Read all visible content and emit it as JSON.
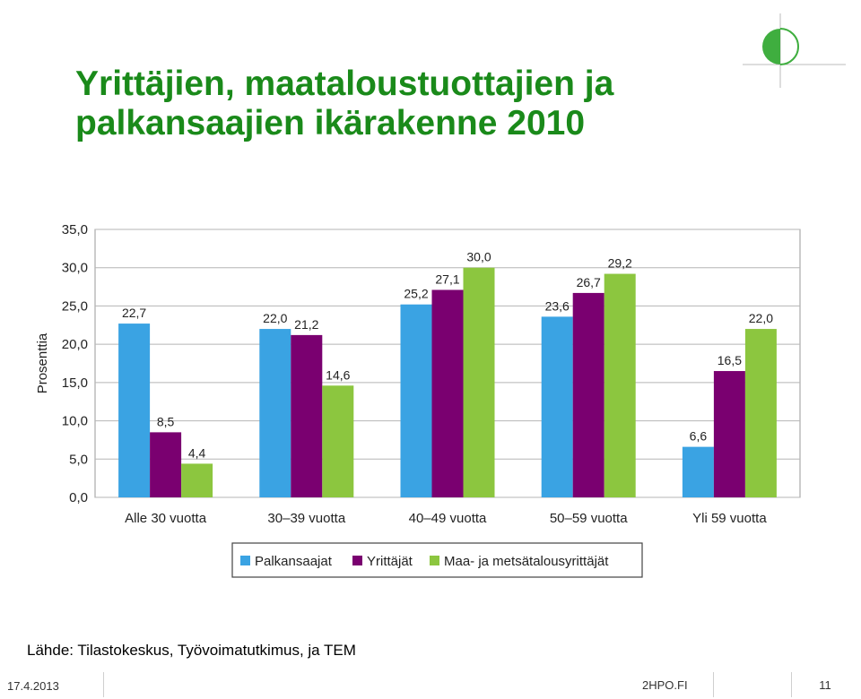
{
  "slide": {
    "title": "Yrittäjien, maataloustuottajien ja palkansaajien ikärakenne 2010",
    "source": "Lähde: Tilastokeskus, Työvoimatutkimus, ja TEM",
    "date": "17.4.2013",
    "site": "2HPO.FI",
    "page_number": "11"
  },
  "colors": {
    "title": "#1a8a1a",
    "series": [
      "#3aa3e3",
      "#7a0070",
      "#8cc63f"
    ]
  },
  "chart_data": {
    "type": "bar",
    "ylabel": "Prosenttia",
    "ylim": [
      0,
      35
    ],
    "yticks": [
      "0,0",
      "5,0",
      "10,0",
      "15,0",
      "20,0",
      "25,0",
      "30,0",
      "35,0"
    ],
    "grid": true,
    "legend_position": "bottom",
    "categories": [
      "Alle 30 vuotta",
      "30–39 vuotta",
      "40–49 vuotta",
      "50–59 vuotta",
      "Yli 59 vuotta"
    ],
    "series": [
      {
        "name": "Palkansaajat",
        "values": [
          22.7,
          22.0,
          25.2,
          23.6,
          6.6
        ],
        "labels": [
          "22,7",
          "22,0",
          "25,2",
          "23,6",
          "6,6"
        ]
      },
      {
        "name": "Yrittäjät",
        "values": [
          8.5,
          21.2,
          27.1,
          26.7,
          16.5
        ],
        "labels": [
          "8,5",
          "21,2",
          "27,1",
          "26,7",
          "16,5"
        ]
      },
      {
        "name": "Maa- ja metsätalousyrittäjät",
        "values": [
          4.4,
          14.6,
          30.0,
          29.2,
          22.0
        ],
        "labels": [
          "4,4",
          "14,6",
          "30,0",
          "29,2",
          "22,0"
        ]
      }
    ]
  }
}
